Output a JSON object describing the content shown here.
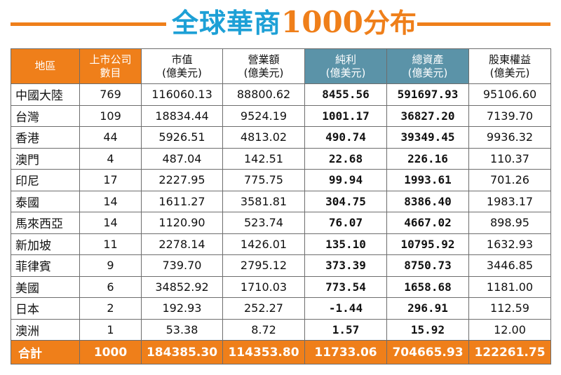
{
  "colors": {
    "accent": "#ef7f1a",
    "title_blue": "#1da0d6",
    "teal": "#5b93a8"
  },
  "title": {
    "main": "全球華商",
    "number": "1000",
    "tail": "分布"
  },
  "table": {
    "headers": [
      [
        "地區"
      ],
      [
        "上市公司",
        "數目"
      ],
      [
        "市值",
        "(億美元)"
      ],
      [
        "營業額",
        "(億美元)"
      ],
      [
        "純利",
        "(億美元)"
      ],
      [
        "總資產",
        "(億美元)"
      ],
      [
        "股東權益",
        "(億美元)"
      ]
    ],
    "rows": [
      [
        "中國大陸",
        "769",
        "116060.13",
        "88800.62",
        "8455.56",
        "591697.93",
        "95106.60"
      ],
      [
        "台灣",
        "109",
        "18834.44",
        "9524.19",
        "1001.17",
        "36827.20",
        "7139.70"
      ],
      [
        "香港",
        "44",
        "5926.51",
        "4813.02",
        "490.74",
        "39349.45",
        "9936.32"
      ],
      [
        "澳門",
        "4",
        "487.04",
        "142.51",
        "22.68",
        "226.16",
        "110.37"
      ],
      [
        "印尼",
        "17",
        "2227.95",
        "775.75",
        "99.94",
        "1993.61",
        "701.26"
      ],
      [
        "泰國",
        "14",
        "1611.27",
        "3581.81",
        "304.75",
        "8386.40",
        "1983.17"
      ],
      [
        "馬來西亞",
        "14",
        "1120.90",
        "523.74",
        "76.07",
        "4667.02",
        "898.95"
      ],
      [
        "新加坡",
        "11",
        "2278.14",
        "1426.01",
        "135.10",
        "10795.92",
        "1632.93"
      ],
      [
        "菲律賓",
        "9",
        "739.70",
        "2795.12",
        "373.39",
        "8750.73",
        "3446.85"
      ],
      [
        "美國",
        "6",
        "34852.92",
        "1710.03",
        "773.54",
        "1658.68",
        "1181.00"
      ],
      [
        "日本",
        "2",
        "192.93",
        "252.27",
        "-1.44",
        "296.91",
        "112.59"
      ],
      [
        "澳洲",
        "1",
        "53.38",
        "8.72",
        "1.57",
        "15.92",
        "12.00"
      ]
    ],
    "total": [
      "合計",
      "1000",
      "184385.30",
      "114353.80",
      "11733.06",
      "704665.93",
      "122261.75"
    ]
  }
}
